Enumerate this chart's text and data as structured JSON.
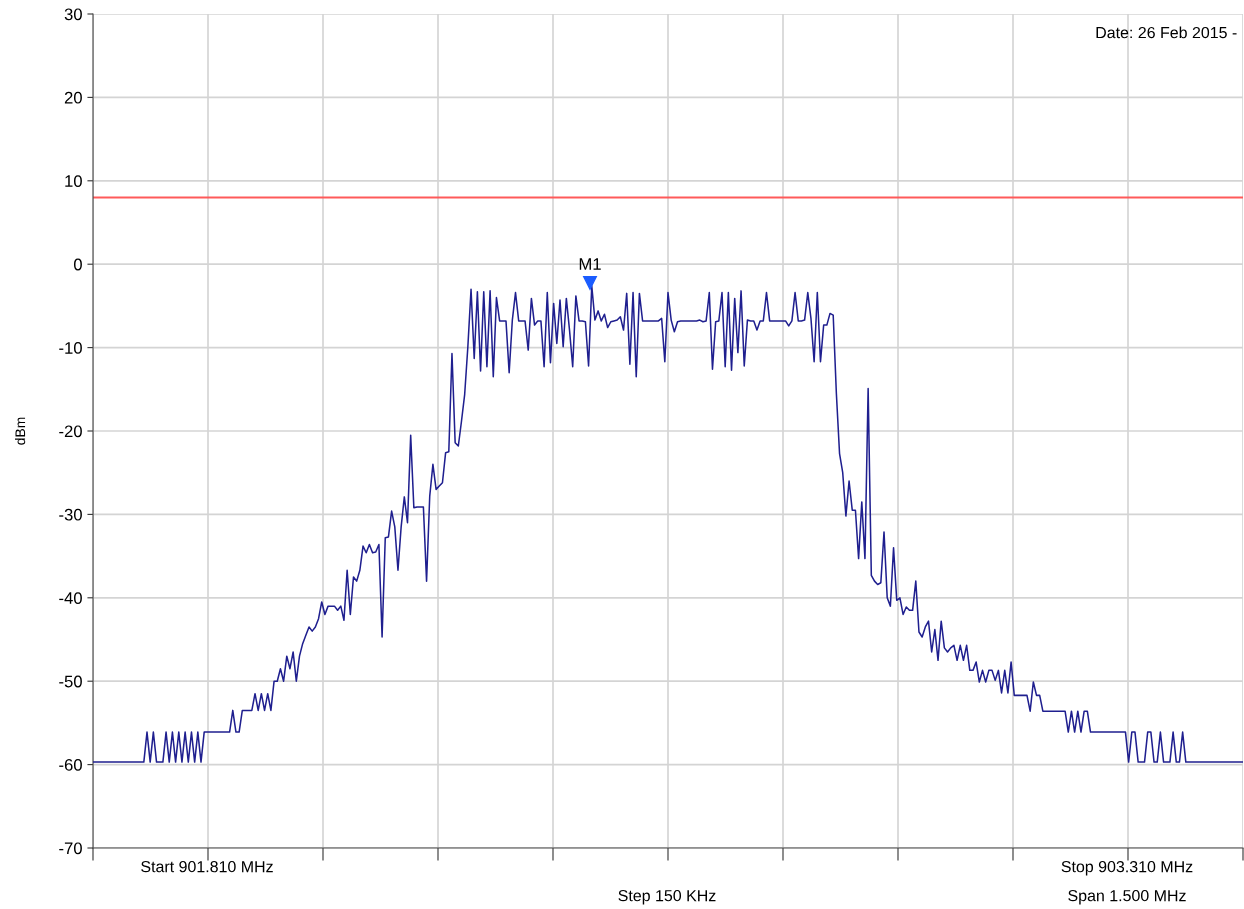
{
  "chart_data": {
    "type": "line",
    "ylabel": "dBm",
    "categories": [
      null,
      null,
      null,
      null,
      null,
      null,
      null,
      null,
      null,
      null,
      null,
      null,
      null,
      null,
      null,
      null,
      null,
      null,
      null,
      null,
      null,
      null,
      null,
      null,
      null,
      null,
      null,
      null,
      null,
      null,
      null,
      null,
      null,
      null,
      null,
      null,
      null,
      null,
      null,
      null,
      null,
      null,
      null,
      null,
      null,
      null,
      null,
      null,
      null,
      null,
      null,
      null,
      null,
      null,
      null,
      null,
      null,
      null,
      null,
      null,
      null,
      null,
      null,
      null,
      null,
      null,
      null,
      null,
      null,
      null,
      null,
      null,
      null,
      null,
      null,
      null,
      null,
      null,
      null,
      null,
      null,
      null,
      null,
      null,
      null,
      null,
      null,
      null,
      null,
      null,
      null,
      null,
      null,
      null,
      null,
      null,
      null,
      null,
      null,
      null,
      null,
      null,
      null,
      null,
      null,
      null,
      null,
      null,
      null,
      null,
      null,
      null,
      null,
      null,
      null,
      null,
      null,
      null,
      null,
      null,
      null,
      null,
      null,
      null,
      null,
      null,
      null,
      null,
      null,
      null,
      null,
      null,
      null,
      null,
      null,
      null,
      null,
      null,
      null,
      null,
      null,
      null,
      null,
      null,
      null,
      null,
      null,
      null,
      null,
      null,
      null,
      null,
      null,
      null,
      null,
      null,
      null,
      null,
      null,
      null,
      null,
      null,
      null,
      null,
      null,
      null,
      null,
      null,
      null,
      null,
      null,
      null,
      null,
      null,
      null,
      null,
      null,
      null,
      null,
      null,
      null,
      null,
      null,
      null,
      null,
      null,
      null,
      null,
      null,
      null,
      null,
      null,
      null,
      null,
      null,
      null,
      null,
      null,
      null,
      null,
      null,
      null,
      null,
      null,
      null,
      null,
      null,
      null,
      null,
      null,
      null,
      null,
      null,
      null,
      null,
      null,
      null,
      null,
      null,
      null,
      null,
      null,
      null,
      null,
      null,
      null,
      null,
      null,
      null,
      null,
      null,
      null,
      null,
      null,
      null,
      null,
      null,
      null,
      null,
      null,
      null,
      null,
      null,
      null,
      null,
      null,
      null,
      null,
      null,
      null,
      null,
      null,
      null,
      null,
      null,
      null,
      null,
      null,
      null,
      null,
      null,
      null,
      null,
      null,
      null,
      null,
      null,
      null,
      null,
      null,
      null,
      null,
      null,
      null,
      null,
      null,
      null,
      null,
      null,
      null,
      null,
      null,
      null,
      null,
      null,
      null,
      null,
      null,
      null,
      null,
      null,
      null,
      null,
      null,
      null,
      null,
      null,
      null,
      null,
      null,
      null,
      null,
      null,
      null,
      null,
      null,
      null,
      null,
      null,
      null,
      null,
      null,
      null,
      null,
      null,
      null,
      null,
      null,
      null,
      null,
      null,
      null,
      null,
      null,
      null,
      null,
      null,
      null,
      null,
      null,
      null,
      null,
      null,
      null,
      null,
      null,
      null,
      null,
      null,
      null,
      null,
      null,
      null,
      null,
      null,
      null,
      null,
      null,
      null,
      null,
      null,
      null,
      null,
      null,
      null,
      null,
      null,
      null,
      null,
      null,
      null,
      null,
      null
    ],
    "ylim": [
      -70,
      30
    ],
    "yticks": [
      -70,
      -60,
      -50,
      -40,
      -30,
      -20,
      -10,
      0,
      10,
      20,
      30
    ],
    "grid": true,
    "marker": "none",
    "line_style": "solid",
    "ref_lines": [
      {
        "axis": "y",
        "value": 8,
        "label": null,
        "color": "#ff5a5a",
        "line_style": "solid"
      }
    ],
    "annotations": [
      "Date: 26 Feb 2015 -",
      "Start 901.810 MHz",
      "Stop 903.310 MHz",
      "Step 150 KHz",
      "Span 1.500 MHz",
      "M1"
    ],
    "series": [
      {
        "color": "#1f1f8f",
        "values": [
          -59.7,
          -59.7,
          -59.7,
          -59.7,
          -59.7,
          -59.7,
          -59.7,
          -59.7,
          -59.7,
          -59.7,
          -59.7,
          -59.7,
          -59.7,
          -59.7,
          -59.7,
          -59.7,
          -59.7,
          -56.1,
          -59.7,
          -56.1,
          -59.7,
          -59.7,
          -59.7,
          -56.1,
          -59.7,
          -56.1,
          -59.7,
          -56.1,
          -59.7,
          -56.1,
          -59.7,
          -56.1,
          -59.7,
          -56.1,
          -59.7,
          -56.1,
          -56.1,
          -56.1,
          -56.1,
          -56.1,
          -56.1,
          -56.1,
          -56.1,
          -56.1,
          -53.5,
          -56.1,
          -56.1,
          -53.5,
          -53.5,
          -53.5,
          -53.5,
          -51.5,
          -53.5,
          -51.5,
          -53.5,
          -51.5,
          -53.5,
          -50,
          -50,
          -48.5,
          -50,
          -47,
          -48.5,
          -46.5,
          -50,
          -47,
          -45.5,
          -44.5,
          -43.5,
          -44,
          -43.5,
          -42.5,
          -40.5,
          -42,
          -41,
          -41,
          -41,
          -41.5,
          -41,
          -42.7,
          -36.7,
          -42,
          -37.5,
          -38,
          -36.7,
          -33.8,
          -34.6,
          -33.6,
          -34.6,
          -34.5,
          -33.6,
          -44.7,
          -32.8,
          -32.7,
          -29.6,
          -31.5,
          -36.7,
          -31.5,
          -27.9,
          -31,
          -20.5,
          -29.2,
          -29.1,
          -29.1,
          -29.1,
          -38,
          -27.8,
          -24,
          -27,
          -26.6,
          -26.2,
          -22.6,
          -22.5,
          -10.7,
          -21.4,
          -21.8,
          -18.8,
          -15.6,
          -9.9,
          -3,
          -11.3,
          -3.3,
          -12.8,
          -3.3,
          -12.3,
          -3.2,
          -13.5,
          -4,
          -6.8,
          -6.8,
          -6.8,
          -13,
          -6.7,
          -3.4,
          -6.8,
          -6.8,
          -6.8,
          -10.3,
          -4.1,
          -7.3,
          -6.8,
          -6.8,
          -12.3,
          -3.4,
          -11.8,
          -4.7,
          -9.5,
          -4.3,
          -9.9,
          -4.1,
          -7.9,
          -12.3,
          -3.8,
          -6.8,
          -6.8,
          -6.9,
          -12.2,
          -2.6,
          -6.7,
          -5.6,
          -6.8,
          -6,
          -7.6,
          -6.9,
          -6.8,
          -6.7,
          -6.3,
          -7.9,
          -3.5,
          -12,
          -3.4,
          -13.5,
          -3.5,
          -6.8,
          -6.8,
          -6.8,
          -6.8,
          -6.8,
          -6.8,
          -6.5,
          -11.7,
          -3.4,
          -6.7,
          -8.1,
          -6.9,
          -6.8,
          -6.8,
          -6.8,
          -6.8,
          -6.8,
          -6.8,
          -6.7,
          -6.9,
          -6.8,
          -3.4,
          -12.6,
          -6.9,
          -6.8,
          -3.4,
          -12.3,
          -3.4,
          -12.7,
          -4.1,
          -10.6,
          -3.2,
          -12.2,
          -6.7,
          -6.8,
          -6.8,
          -7.9,
          -6.8,
          -6.8,
          -3.4,
          -6.8,
          -6.8,
          -6.8,
          -6.8,
          -6.8,
          -6.8,
          -7.4,
          -6.8,
          -3.4,
          -6.8,
          -6.8,
          -6.7,
          -3.4,
          -6.5,
          -11.7,
          -3.4,
          -11.7,
          -7.3,
          -7.3,
          -5.9,
          -6.1,
          -15.5,
          -22.7,
          -25,
          -30.2,
          -26,
          -29.5,
          -29.5,
          -35.3,
          -28.5,
          -35.3,
          -14.9,
          -37.3,
          -38,
          -38.4,
          -38.2,
          -32.1,
          -40,
          -41,
          -34,
          -40.3,
          -40,
          -42,
          -41.1,
          -41.5,
          -41.5,
          -38,
          -44.1,
          -44.7,
          -43.5,
          -42.8,
          -46.5,
          -43.8,
          -47.5,
          -42.8,
          -46,
          -46.5,
          -46,
          -45.7,
          -47.5,
          -45.7,
          -47.5,
          -45.7,
          -48.7,
          -48.7,
          -47.7,
          -50.1,
          -48.7,
          -50.1,
          -48.7,
          -48.7,
          -49.9,
          -48.7,
          -51.4,
          -48.7,
          -51.4,
          -47.7,
          -51.7,
          -51.7,
          -51.7,
          -51.7,
          -51.7,
          -53.6,
          -50.1,
          -51.7,
          -51.7,
          -53.6,
          -53.6,
          -53.6,
          -53.6,
          -53.6,
          -53.6,
          -53.6,
          -53.6,
          -56.1,
          -53.6,
          -56.1,
          -53.6,
          -56.1,
          -53.6,
          -53.6,
          -56.1,
          -56.1,
          -56.1,
          -56.1,
          -56.1,
          -56.1,
          -56.1,
          -56.1,
          -56.1,
          -56.1,
          -56.1,
          -56.1,
          -59.7,
          -56.1,
          -56.1,
          -59.7,
          -59.7,
          -59.7,
          -56.1,
          -56.1,
          -59.7,
          -59.7,
          -56.1,
          -59.7,
          -59.7,
          -59.7,
          -56.1,
          -59.7,
          -59.7,
          -56.1,
          -59.7,
          -59.7,
          -59.7,
          -59.7,
          -59.7,
          -59.7,
          -59.7,
          -59.7,
          -59.7,
          -59.7,
          -59.7,
          -59.7,
          -59.7,
          -59.7,
          -59.7,
          -59.7,
          -59.7,
          -59.7,
          -59.7
        ]
      }
    ]
  }
}
